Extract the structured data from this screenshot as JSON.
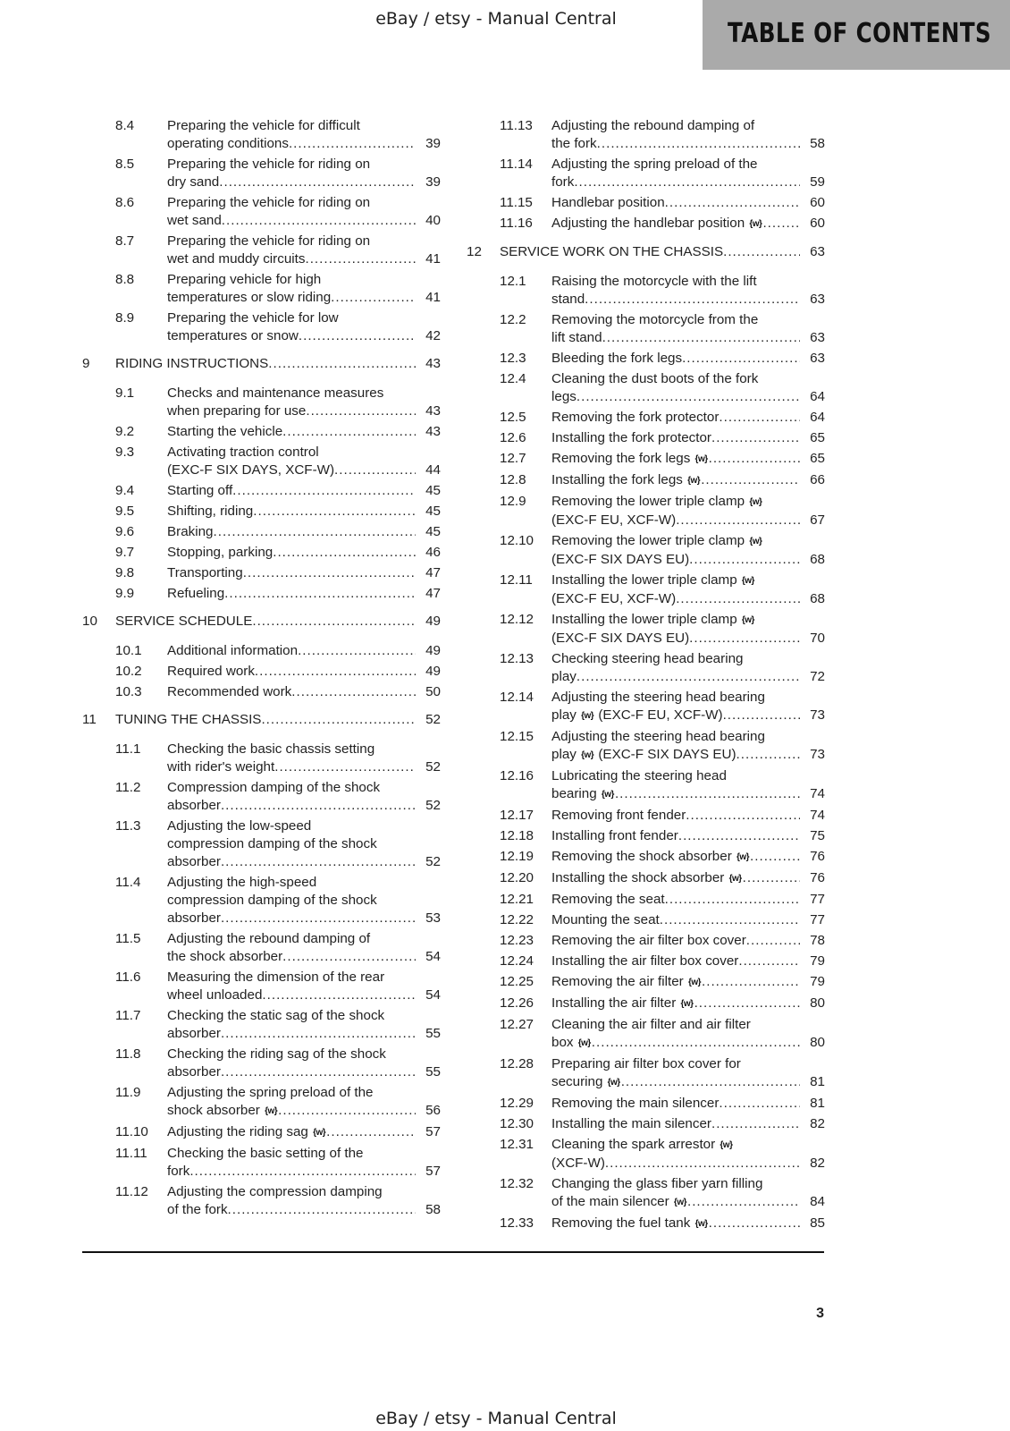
{
  "watermark": "eBay / etsy - Manual Central",
  "header_tab": "TABLE OF CONTENTS",
  "page_number": "3",
  "icons": {
    "wrench": "wrench-icon"
  },
  "columns": [
    [
      {
        "num": "8.4",
        "lines": [
          "Preparing the vehicle for difficult",
          "operating conditions"
        ],
        "page": "39"
      },
      {
        "num": "8.5",
        "lines": [
          "Preparing the vehicle for riding on",
          "dry sand"
        ],
        "page": "39"
      },
      {
        "num": "8.6",
        "lines": [
          "Preparing the vehicle for riding on",
          "wet sand"
        ],
        "page": "40"
      },
      {
        "num": "8.7",
        "lines": [
          "Preparing the vehicle for riding on",
          "wet and muddy circuits"
        ],
        "page": "41"
      },
      {
        "num": "8.8",
        "lines": [
          "Preparing vehicle for high",
          "temperatures or slow riding"
        ],
        "page": "41"
      },
      {
        "num": "8.9",
        "lines": [
          "Preparing the vehicle for low",
          "temperatures or snow"
        ],
        "page": "42"
      },
      {
        "num": "9",
        "chapter": true,
        "lines": [
          "RIDING INSTRUCTIONS"
        ],
        "page": "43"
      },
      {
        "num": "9.1",
        "lines": [
          "Checks and maintenance measures",
          "when preparing for use"
        ],
        "page": "43"
      },
      {
        "num": "9.2",
        "lines": [
          "Starting the vehicle"
        ],
        "page": "43"
      },
      {
        "num": "9.3",
        "lines": [
          "Activating traction control",
          "(EXC-F SIX DAYS, XCF-W)"
        ],
        "page": "44"
      },
      {
        "num": "9.4",
        "lines": [
          "Starting off"
        ],
        "page": "45"
      },
      {
        "num": "9.5",
        "lines": [
          "Shifting, riding"
        ],
        "page": "45"
      },
      {
        "num": "9.6",
        "lines": [
          "Braking"
        ],
        "page": "45"
      },
      {
        "num": "9.7",
        "lines": [
          "Stopping, parking"
        ],
        "page": "46"
      },
      {
        "num": "9.8",
        "lines": [
          "Transporting"
        ],
        "page": "47"
      },
      {
        "num": "9.9",
        "lines": [
          "Refueling"
        ],
        "page": "47"
      },
      {
        "num": "10",
        "chapter": true,
        "lines": [
          "SERVICE SCHEDULE"
        ],
        "page": "49"
      },
      {
        "num": "10.1",
        "lines": [
          "Additional information"
        ],
        "page": "49"
      },
      {
        "num": "10.2",
        "lines": [
          "Required work"
        ],
        "page": "49"
      },
      {
        "num": "10.3",
        "lines": [
          "Recommended work"
        ],
        "page": "50"
      },
      {
        "num": "11",
        "chapter": true,
        "lines": [
          "TUNING THE CHASSIS"
        ],
        "page": "52"
      },
      {
        "num": "11.1",
        "lines": [
          "Checking the basic chassis setting",
          "with rider's weight"
        ],
        "page": "52"
      },
      {
        "num": "11.2",
        "lines": [
          "Compression damping of the shock",
          "absorber"
        ],
        "page": "52"
      },
      {
        "num": "11.3",
        "lines": [
          "Adjusting the low-speed",
          "compression damping of the shock",
          "absorber"
        ],
        "page": "52"
      },
      {
        "num": "11.4",
        "lines": [
          "Adjusting the high-speed",
          "compression damping of the shock",
          "absorber"
        ],
        "page": "53"
      },
      {
        "num": "11.5",
        "lines": [
          "Adjusting the rebound damping of",
          "the shock absorber"
        ],
        "page": "54"
      },
      {
        "num": "11.6",
        "lines": [
          "Measuring the dimension of the rear",
          "wheel unloaded"
        ],
        "page": "54"
      },
      {
        "num": "11.7",
        "lines": [
          "Checking the static sag of the shock",
          "absorber"
        ],
        "page": "55"
      },
      {
        "num": "11.8",
        "lines": [
          "Checking the riding sag of the shock",
          "absorber"
        ],
        "page": "55"
      },
      {
        "num": "11.9",
        "lines": [
          "Adjusting the spring preload of the",
          "shock absorber {w}"
        ],
        "page": "56"
      },
      {
        "num": "11.10",
        "lines": [
          "Adjusting the riding sag {w}"
        ],
        "page": "57"
      },
      {
        "num": "11.11",
        "lines": [
          "Checking the basic setting of the",
          "fork"
        ],
        "page": "57"
      },
      {
        "num": "11.12",
        "lines": [
          "Adjusting the compression damping",
          "of the fork"
        ],
        "page": "58"
      }
    ],
    [
      {
        "num": "11.13",
        "lines": [
          "Adjusting the rebound damping of",
          "the fork"
        ],
        "page": "58"
      },
      {
        "num": "11.14",
        "lines": [
          "Adjusting the spring preload of the",
          "fork"
        ],
        "page": "59"
      },
      {
        "num": "11.15",
        "lines": [
          "Handlebar position"
        ],
        "page": "60"
      },
      {
        "num": "11.16",
        "lines": [
          "Adjusting the handlebar position {w}"
        ],
        "page": "60"
      },
      {
        "num": "12",
        "chapter": true,
        "lines": [
          "SERVICE WORK ON THE CHASSIS"
        ],
        "page": "63"
      },
      {
        "num": "12.1",
        "lines": [
          "Raising the motorcycle with the lift",
          "stand"
        ],
        "page": "63"
      },
      {
        "num": "12.2",
        "lines": [
          "Removing the motorcycle from the",
          "lift stand"
        ],
        "page": "63"
      },
      {
        "num": "12.3",
        "lines": [
          "Bleeding the fork legs"
        ],
        "page": "63"
      },
      {
        "num": "12.4",
        "lines": [
          "Cleaning the dust boots of the fork",
          "legs"
        ],
        "page": "64"
      },
      {
        "num": "12.5",
        "lines": [
          "Removing the fork protector"
        ],
        "page": "64"
      },
      {
        "num": "12.6",
        "lines": [
          "Installing the fork protector"
        ],
        "page": "65"
      },
      {
        "num": "12.7",
        "lines": [
          "Removing the fork legs {w}"
        ],
        "page": "65"
      },
      {
        "num": "12.8",
        "lines": [
          "Installing the fork legs {w}"
        ],
        "page": "66"
      },
      {
        "num": "12.9",
        "lines": [
          "Removing the lower triple clamp {w}",
          "(EXC-F EU, XCF-W)"
        ],
        "page": "67"
      },
      {
        "num": "12.10",
        "lines": [
          "Removing the lower triple clamp {w}",
          "(EXC-F SIX DAYS EU)"
        ],
        "page": "68"
      },
      {
        "num": "12.11",
        "lines": [
          "Installing the lower triple clamp {w}",
          "(EXC-F EU, XCF-W)"
        ],
        "page": "68"
      },
      {
        "num": "12.12",
        "lines": [
          "Installing the lower triple clamp {w}",
          "(EXC-F SIX DAYS EU)"
        ],
        "page": "70"
      },
      {
        "num": "12.13",
        "lines": [
          "Checking steering head bearing",
          "play"
        ],
        "page": "72"
      },
      {
        "num": "12.14",
        "lines": [
          "Adjusting the steering head bearing",
          "play {w} (EXC-F EU, XCF-W)"
        ],
        "page": "73"
      },
      {
        "num": "12.15",
        "lines": [
          "Adjusting the steering head bearing",
          "play {w} (EXC-F SIX DAYS EU)"
        ],
        "page": "73"
      },
      {
        "num": "12.16",
        "lines": [
          "Lubricating the steering head",
          "bearing {w}"
        ],
        "page": "74"
      },
      {
        "num": "12.17",
        "lines": [
          "Removing front fender"
        ],
        "page": "74"
      },
      {
        "num": "12.18",
        "lines": [
          "Installing front fender"
        ],
        "page": "75"
      },
      {
        "num": "12.19",
        "lines": [
          "Removing the shock absorber {w}"
        ],
        "page": "76"
      },
      {
        "num": "12.20",
        "lines": [
          "Installing the shock absorber {w}"
        ],
        "page": "76"
      },
      {
        "num": "12.21",
        "lines": [
          "Removing the seat"
        ],
        "page": "77"
      },
      {
        "num": "12.22",
        "lines": [
          "Mounting the seat"
        ],
        "page": "77"
      },
      {
        "num": "12.23",
        "lines": [
          "Removing the air filter box cover"
        ],
        "page": "78"
      },
      {
        "num": "12.24",
        "lines": [
          "Installing the air filter box cover"
        ],
        "page": "79"
      },
      {
        "num": "12.25",
        "lines": [
          "Removing the air filter {w}"
        ],
        "page": "79"
      },
      {
        "num": "12.26",
        "lines": [
          "Installing the air filter {w}"
        ],
        "page": "80"
      },
      {
        "num": "12.27",
        "lines": [
          "Cleaning the air filter and air filter",
          "box {w}"
        ],
        "page": "80"
      },
      {
        "num": "12.28",
        "lines": [
          "Preparing air filter box cover for",
          "securing {w}"
        ],
        "page": "81"
      },
      {
        "num": "12.29",
        "lines": [
          "Removing the main silencer"
        ],
        "page": "81"
      },
      {
        "num": "12.30",
        "lines": [
          "Installing the main silencer"
        ],
        "page": "82"
      },
      {
        "num": "12.31",
        "lines": [
          "Cleaning the spark arrestor {w}",
          "(XCF-W)"
        ],
        "page": "82"
      },
      {
        "num": "12.32",
        "lines": [
          "Changing the glass fiber yarn filling",
          "of the main silencer {w}"
        ],
        "page": "84"
      },
      {
        "num": "12.33",
        "lines": [
          "Removing the fuel tank {w}"
        ],
        "page": "85"
      }
    ]
  ]
}
